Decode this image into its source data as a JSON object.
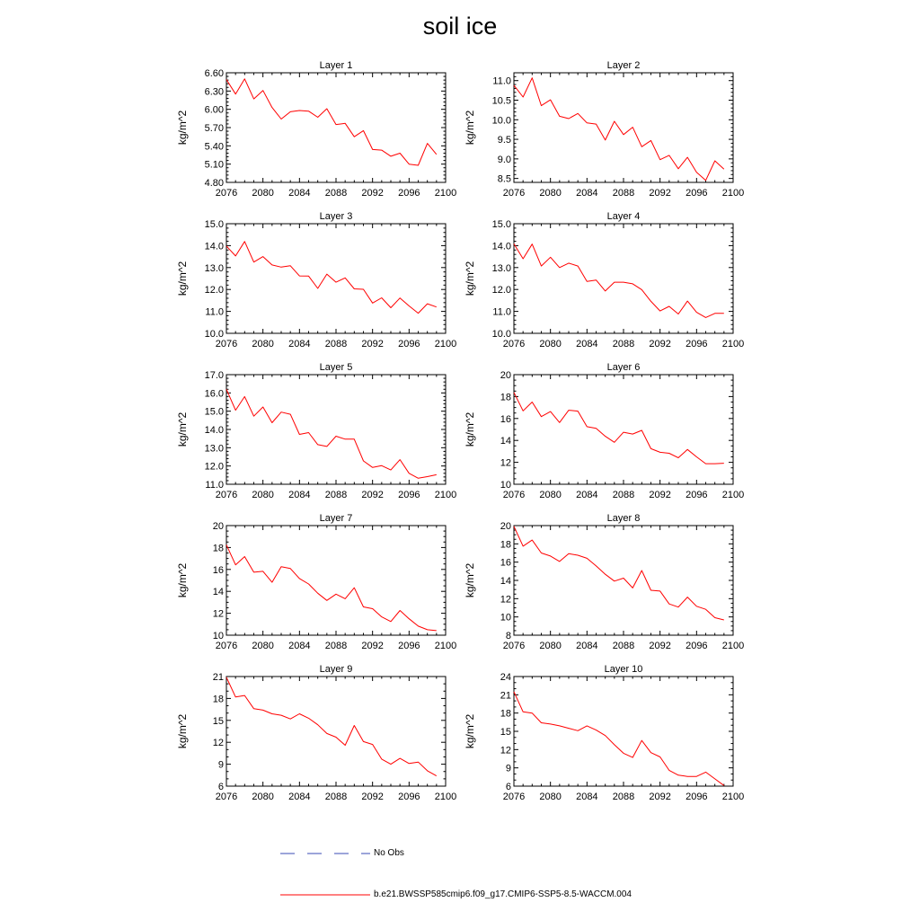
{
  "title": "soil ice",
  "colors": {
    "model_line": "#ff0000",
    "obs_line": "#3a4bb5",
    "axes": "#000000"
  },
  "legend": {
    "obs_label": "No Obs",
    "model_label": "b.e21.BWSSP585cmip6.f09_g17.CMIP6-SSP5-8.5-WACCM.004"
  },
  "chart_data": [
    {
      "type": "line",
      "title": "Layer 1",
      "xlabel": "",
      "ylabel": "kg/m^2",
      "xlim": [
        2076,
        2100
      ],
      "xticks": [
        2076,
        2080,
        2084,
        2088,
        2092,
        2096,
        2100
      ],
      "xtick_labels": [
        "2076",
        "2080",
        "2084",
        "2088",
        "2092",
        "2096",
        "2100"
      ],
      "ylim": [
        4.8,
        6.6
      ],
      "yticks": [
        4.8,
        5.1,
        5.4,
        5.7,
        6.0,
        6.3,
        6.6
      ],
      "ytick_labels": [
        "4.80",
        "5.10",
        "5.40",
        "5.70",
        "6.00",
        "6.30",
        "6.60"
      ],
      "yminor": 5,
      "x": [
        2076,
        2077,
        2078,
        2079,
        2080,
        2081,
        2082,
        2083,
        2084,
        2085,
        2086,
        2087,
        2088,
        2089,
        2090,
        2091,
        2092,
        2093,
        2094,
        2095,
        2096,
        2097,
        2098,
        2099
      ],
      "series": [
        {
          "name": "b.e21.BWSSP585cmip6.f09_g17.CMIP6-SSP5-8.5-WACCM.004",
          "values": [
            6.49,
            6.25,
            6.5,
            6.17,
            6.31,
            6.03,
            5.84,
            5.96,
            5.98,
            5.97,
            5.87,
            6.01,
            5.75,
            5.77,
            5.55,
            5.65,
            5.34,
            5.33,
            5.23,
            5.28,
            5.1,
            5.08,
            5.44,
            5.26
          ]
        }
      ]
    },
    {
      "type": "line",
      "title": "Layer 2",
      "xlabel": "",
      "ylabel": "kg/m^2",
      "xlim": [
        2076,
        2100
      ],
      "xticks": [
        2076,
        2080,
        2084,
        2088,
        2092,
        2096,
        2100
      ],
      "xtick_labels": [
        "2076",
        "2080",
        "2084",
        "2088",
        "2092",
        "2096",
        "2100"
      ],
      "ylim": [
        8.4,
        11.2
      ],
      "yticks": [
        8.5,
        9.0,
        9.5,
        10.0,
        10.5,
        11.0
      ],
      "ytick_labels": [
        "8.5",
        "9.0",
        "9.5",
        "10.0",
        "10.5",
        "11.0"
      ],
      "yminor": 5,
      "x": [
        2076,
        2077,
        2078,
        2079,
        2080,
        2081,
        2082,
        2083,
        2084,
        2085,
        2086,
        2087,
        2088,
        2089,
        2090,
        2091,
        2092,
        2093,
        2094,
        2095,
        2096,
        2097,
        2098,
        2099
      ],
      "series": [
        {
          "name": "b.e21.BWSSP585cmip6.f09_g17.CMIP6-SSP5-8.5-WACCM.004",
          "values": [
            10.88,
            10.58,
            11.07,
            10.36,
            10.51,
            10.09,
            10.03,
            10.16,
            9.92,
            9.89,
            9.48,
            9.96,
            9.62,
            9.81,
            9.31,
            9.47,
            8.98,
            9.09,
            8.75,
            9.04,
            8.66,
            8.45,
            8.95,
            8.74
          ]
        }
      ]
    },
    {
      "type": "line",
      "title": "Layer 3",
      "xlabel": "",
      "ylabel": "kg/m^2",
      "xlim": [
        2076,
        2100
      ],
      "xticks": [
        2076,
        2080,
        2084,
        2088,
        2092,
        2096,
        2100
      ],
      "xtick_labels": [
        "2076",
        "2080",
        "2084",
        "2088",
        "2092",
        "2096",
        "2100"
      ],
      "ylim": [
        10.0,
        15.0
      ],
      "yticks": [
        10.0,
        11.0,
        12.0,
        13.0,
        14.0,
        15.0
      ],
      "ytick_labels": [
        "10.0",
        "11.0",
        "12.0",
        "13.0",
        "14.0",
        "15.0"
      ],
      "yminor": 5,
      "x": [
        2076,
        2077,
        2078,
        2079,
        2080,
        2081,
        2082,
        2083,
        2084,
        2085,
        2086,
        2087,
        2088,
        2089,
        2090,
        2091,
        2092,
        2093,
        2094,
        2095,
        2096,
        2097,
        2098,
        2099
      ],
      "series": [
        {
          "name": "b.e21.BWSSP585cmip6.f09_g17.CMIP6-SSP5-8.5-WACCM.004",
          "values": [
            13.98,
            13.53,
            14.19,
            13.25,
            13.5,
            13.12,
            13.02,
            13.08,
            12.62,
            12.61,
            12.05,
            12.7,
            12.33,
            12.53,
            12.03,
            12.01,
            11.38,
            11.62,
            11.17,
            11.61,
            11.25,
            10.92,
            11.35,
            11.2
          ]
        }
      ]
    },
    {
      "type": "line",
      "title": "Layer 4",
      "xlabel": "",
      "ylabel": "kg/m^2",
      "xlim": [
        2076,
        2100
      ],
      "xticks": [
        2076,
        2080,
        2084,
        2088,
        2092,
        2096,
        2100
      ],
      "xtick_labels": [
        "2076",
        "2080",
        "2084",
        "2088",
        "2092",
        "2096",
        "2100"
      ],
      "ylim": [
        10.0,
        15.0
      ],
      "yticks": [
        10.0,
        11.0,
        12.0,
        13.0,
        14.0,
        15.0
      ],
      "ytick_labels": [
        "10.0",
        "11.0",
        "12.0",
        "13.0",
        "14.0",
        "15.0"
      ],
      "yminor": 5,
      "x": [
        2076,
        2077,
        2078,
        2079,
        2080,
        2081,
        2082,
        2083,
        2084,
        2085,
        2086,
        2087,
        2088,
        2089,
        2090,
        2091,
        2092,
        2093,
        2094,
        2095,
        2096,
        2097,
        2098,
        2099
      ],
      "series": [
        {
          "name": "b.e21.BWSSP585cmip6.f09_g17.CMIP6-SSP5-8.5-WACCM.004",
          "values": [
            14.08,
            13.4,
            14.07,
            13.07,
            13.47,
            13.0,
            13.2,
            13.07,
            12.37,
            12.43,
            11.93,
            12.33,
            12.33,
            12.26,
            11.99,
            11.46,
            11.02,
            11.23,
            10.88,
            11.47,
            10.96,
            10.72,
            10.91,
            10.91
          ]
        }
      ]
    },
    {
      "type": "line",
      "title": "Layer 5",
      "xlabel": "",
      "ylabel": "kg/m^2",
      "xlim": [
        2076,
        2100
      ],
      "xticks": [
        2076,
        2080,
        2084,
        2088,
        2092,
        2096,
        2100
      ],
      "xtick_labels": [
        "2076",
        "2080",
        "2084",
        "2088",
        "2092",
        "2096",
        "2100"
      ],
      "ylim": [
        11.0,
        17.0
      ],
      "yticks": [
        11.0,
        12.0,
        13.0,
        14.0,
        15.0,
        16.0,
        17.0
      ],
      "ytick_labels": [
        "11.0",
        "12.0",
        "13.0",
        "14.0",
        "15.0",
        "16.0",
        "17.0"
      ],
      "yminor": 5,
      "x": [
        2076,
        2077,
        2078,
        2079,
        2080,
        2081,
        2082,
        2083,
        2084,
        2085,
        2086,
        2087,
        2088,
        2089,
        2090,
        2091,
        2092,
        2093,
        2094,
        2095,
        2096,
        2097,
        2098,
        2099
      ],
      "series": [
        {
          "name": "b.e21.BWSSP585cmip6.f09_g17.CMIP6-SSP5-8.5-WACCM.004",
          "values": [
            16.2,
            15.05,
            15.8,
            14.73,
            15.23,
            14.37,
            14.95,
            14.83,
            13.73,
            13.83,
            13.17,
            13.07,
            13.63,
            13.47,
            13.47,
            12.28,
            11.92,
            12.02,
            11.78,
            12.35,
            11.6,
            11.33,
            11.42,
            11.52
          ]
        }
      ]
    },
    {
      "type": "line",
      "title": "Layer 6",
      "xlabel": "",
      "ylabel": "kg/m^2",
      "xlim": [
        2076,
        2100
      ],
      "xticks": [
        2076,
        2080,
        2084,
        2088,
        2092,
        2096,
        2100
      ],
      "xtick_labels": [
        "2076",
        "2080",
        "2084",
        "2088",
        "2092",
        "2096",
        "2100"
      ],
      "ylim": [
        10,
        20
      ],
      "yticks": [
        10,
        12,
        14,
        16,
        18,
        20
      ],
      "ytick_labels": [
        "10",
        "12",
        "14",
        "16",
        "18",
        "20"
      ],
      "yminor": 4,
      "x": [
        2076,
        2077,
        2078,
        2079,
        2080,
        2081,
        2082,
        2083,
        2084,
        2085,
        2086,
        2087,
        2088,
        2089,
        2090,
        2091,
        2092,
        2093,
        2094,
        2095,
        2096,
        2097,
        2098,
        2099
      ],
      "series": [
        {
          "name": "b.e21.BWSSP585cmip6.f09_g17.CMIP6-SSP5-8.5-WACCM.004",
          "values": [
            18.38,
            16.7,
            17.5,
            16.17,
            16.63,
            15.63,
            16.75,
            16.67,
            15.25,
            15.1,
            14.38,
            13.83,
            14.75,
            14.58,
            14.92,
            13.25,
            12.92,
            12.83,
            12.42,
            13.17,
            12.5,
            11.88,
            11.88,
            11.92
          ]
        }
      ]
    },
    {
      "type": "line",
      "title": "Layer 7",
      "xlabel": "",
      "ylabel": "kg/m^2",
      "xlim": [
        2076,
        2100
      ],
      "xticks": [
        2076,
        2080,
        2084,
        2088,
        2092,
        2096,
        2100
      ],
      "xtick_labels": [
        "2076",
        "2080",
        "2084",
        "2088",
        "2092",
        "2096",
        "2100"
      ],
      "ylim": [
        10,
        20
      ],
      "yticks": [
        10,
        12,
        14,
        16,
        18,
        20
      ],
      "ytick_labels": [
        "10",
        "12",
        "14",
        "16",
        "18",
        "20"
      ],
      "yminor": 4,
      "x": [
        2076,
        2077,
        2078,
        2079,
        2080,
        2081,
        2082,
        2083,
        2084,
        2085,
        2086,
        2087,
        2088,
        2089,
        2090,
        2091,
        2092,
        2093,
        2094,
        2095,
        2096,
        2097,
        2098,
        2099
      ],
      "series": [
        {
          "name": "b.e21.BWSSP585cmip6.f09_g17.CMIP6-SSP5-8.5-WACCM.004",
          "values": [
            18.25,
            16.42,
            17.17,
            15.75,
            15.83,
            14.83,
            16.25,
            16.08,
            15.17,
            14.67,
            13.83,
            13.17,
            13.75,
            13.33,
            14.33,
            12.58,
            12.42,
            11.67,
            11.25,
            12.25,
            11.5,
            10.83,
            10.5,
            10.42
          ]
        }
      ]
    },
    {
      "type": "line",
      "title": "Layer 8",
      "xlabel": "",
      "ylabel": "kg/m^2",
      "xlim": [
        2076,
        2100
      ],
      "xticks": [
        2076,
        2080,
        2084,
        2088,
        2092,
        2096,
        2100
      ],
      "xtick_labels": [
        "2076",
        "2080",
        "2084",
        "2088",
        "2092",
        "2096",
        "2100"
      ],
      "ylim": [
        8,
        20
      ],
      "yticks": [
        8,
        10,
        12,
        14,
        16,
        18,
        20
      ],
      "ytick_labels": [
        "8",
        "10",
        "12",
        "14",
        "16",
        "18",
        "20"
      ],
      "yminor": 4,
      "x": [
        2076,
        2077,
        2078,
        2079,
        2080,
        2081,
        2082,
        2083,
        2084,
        2085,
        2086,
        2087,
        2088,
        2089,
        2090,
        2091,
        2092,
        2093,
        2094,
        2095,
        2096,
        2097,
        2098,
        2099
      ],
      "series": [
        {
          "name": "b.e21.BWSSP585cmip6.f09_g17.CMIP6-SSP5-8.5-WACCM.004",
          "values": [
            19.92,
            17.75,
            18.42,
            17.0,
            16.67,
            16.08,
            16.92,
            16.75,
            16.42,
            15.58,
            14.67,
            13.92,
            14.25,
            13.17,
            15.08,
            12.92,
            12.83,
            11.42,
            11.08,
            12.17,
            11.17,
            10.83,
            9.92,
            9.67
          ]
        }
      ]
    },
    {
      "type": "line",
      "title": "Layer 9",
      "xlabel": "",
      "ylabel": "kg/m^2",
      "xlim": [
        2076,
        2100
      ],
      "xticks": [
        2076,
        2080,
        2084,
        2088,
        2092,
        2096,
        2100
      ],
      "xtick_labels": [
        "2076",
        "2080",
        "2084",
        "2088",
        "2092",
        "2096",
        "2100"
      ],
      "ylim": [
        6,
        21
      ],
      "yticks": [
        6,
        9,
        12,
        15,
        18,
        21
      ],
      "ytick_labels": [
        "6",
        "9",
        "12",
        "15",
        "18",
        "21"
      ],
      "yminor": 3,
      "x": [
        2076,
        2077,
        2078,
        2079,
        2080,
        2081,
        2082,
        2083,
        2084,
        2085,
        2086,
        2087,
        2088,
        2089,
        2090,
        2091,
        2092,
        2093,
        2094,
        2095,
        2096,
        2097,
        2098,
        2099
      ],
      "series": [
        {
          "name": "b.e21.BWSSP585cmip6.f09_g17.CMIP6-SSP5-8.5-WACCM.004",
          "values": [
            20.9,
            18.2,
            18.4,
            16.6,
            16.4,
            15.9,
            15.7,
            15.2,
            15.9,
            15.3,
            14.4,
            13.2,
            12.7,
            11.6,
            14.3,
            12.1,
            11.7,
            9.7,
            9.0,
            9.8,
            9.1,
            9.3,
            8.1,
            7.4
          ]
        }
      ]
    },
    {
      "type": "line",
      "title": "Layer 10",
      "xlabel": "",
      "ylabel": "kg/m^2",
      "xlim": [
        2076,
        2100
      ],
      "xticks": [
        2076,
        2080,
        2084,
        2088,
        2092,
        2096,
        2100
      ],
      "xtick_labels": [
        "2076",
        "2080",
        "2084",
        "2088",
        "2092",
        "2096",
        "2100"
      ],
      "ylim": [
        6,
        24
      ],
      "yticks": [
        6,
        9,
        12,
        15,
        18,
        21,
        24
      ],
      "ytick_labels": [
        "6",
        "9",
        "12",
        "15",
        "18",
        "21",
        "24"
      ],
      "yminor": 3,
      "x": [
        2076,
        2077,
        2078,
        2079,
        2080,
        2081,
        2082,
        2083,
        2084,
        2085,
        2086,
        2087,
        2088,
        2089,
        2090,
        2091,
        2092,
        2093,
        2094,
        2095,
        2096,
        2097,
        2098,
        2099
      ],
      "series": [
        {
          "name": "b.e21.BWSSP585cmip6.f09_g17.CMIP6-SSP5-8.5-WACCM.004",
          "values": [
            21.5,
            18.2,
            18.0,
            16.4,
            16.2,
            15.9,
            15.5,
            15.1,
            15.9,
            15.2,
            14.3,
            12.8,
            11.4,
            10.7,
            13.5,
            11.5,
            10.8,
            8.6,
            7.8,
            7.6,
            7.6,
            8.3,
            7.2,
            6.1
          ]
        }
      ]
    }
  ]
}
